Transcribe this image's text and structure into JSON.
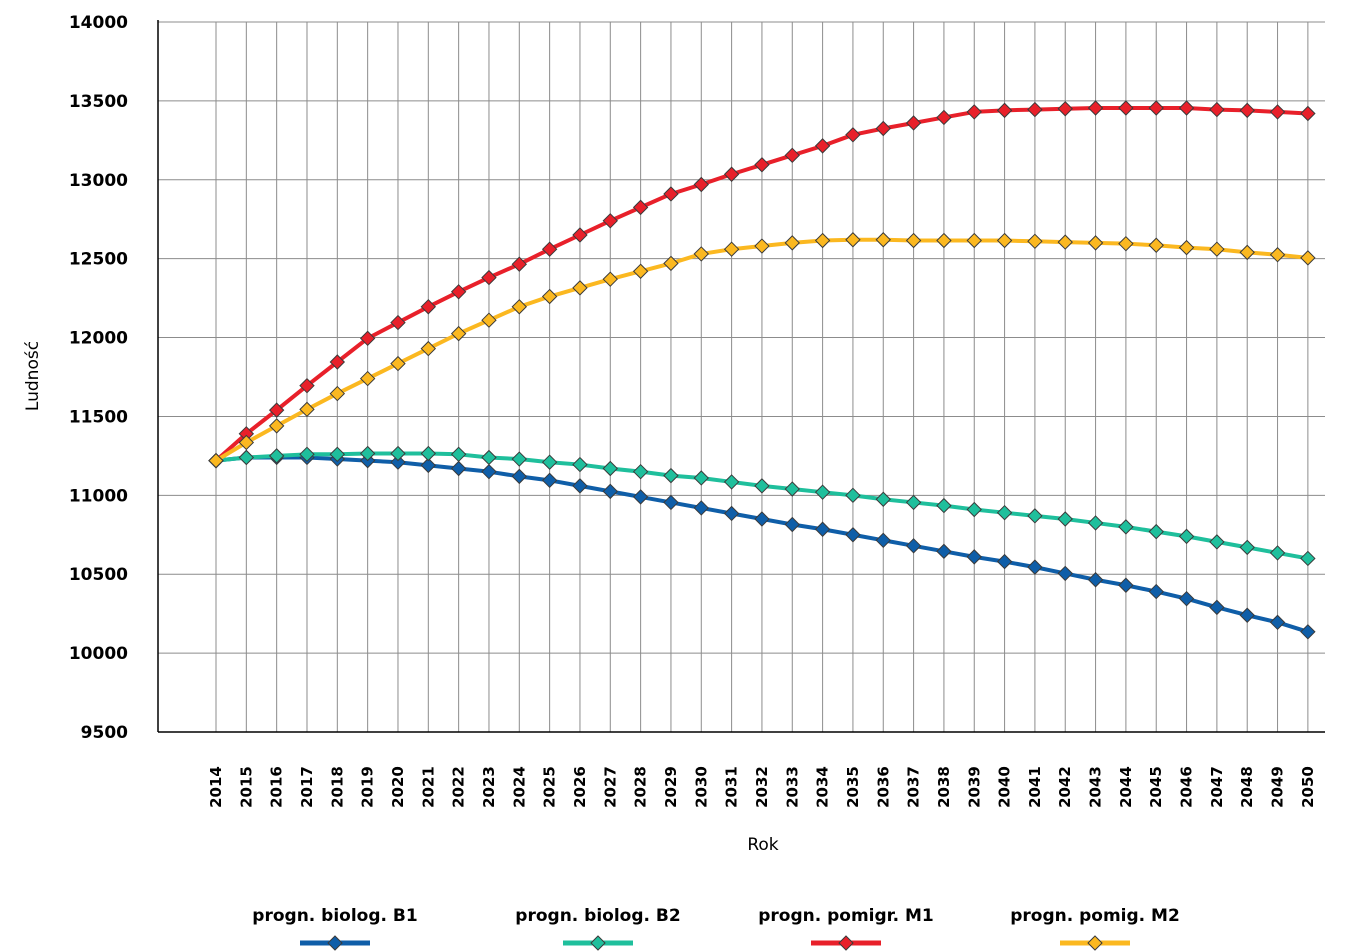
{
  "chart_data": {
    "type": "line",
    "xlabel": "Rok",
    "ylabel": "Ludność",
    "ylim": [
      9500,
      14000
    ],
    "yticks": [
      9500,
      10000,
      10500,
      11000,
      11500,
      12000,
      12500,
      13000,
      13500,
      14000
    ],
    "grid": true,
    "legend_position": "bottom",
    "x": [
      2014,
      2015,
      2016,
      2017,
      2018,
      2019,
      2020,
      2021,
      2022,
      2023,
      2024,
      2025,
      2026,
      2027,
      2028,
      2029,
      2030,
      2031,
      2032,
      2033,
      2034,
      2035,
      2036,
      2037,
      2038,
      2039,
      2040,
      2041,
      2042,
      2043,
      2044,
      2045,
      2046,
      2047,
      2048,
      2049,
      2050
    ],
    "series": [
      {
        "name": "progn. biolog. B1",
        "color": "#0f5ea8",
        "values": [
          11220,
          11240,
          11240,
          11240,
          11230,
          11220,
          11210,
          11190,
          11170,
          11150,
          11120,
          11095,
          11060,
          11025,
          10990,
          10955,
          10920,
          10885,
          10850,
          10815,
          10785,
          10750,
          10715,
          10680,
          10645,
          10610,
          10580,
          10545,
          10505,
          10465,
          10430,
          10390,
          10345,
          10290,
          10240,
          10195,
          10135
        ]
      },
      {
        "name": "progn. biolog. B2",
        "color": "#1fbf9c",
        "values": [
          11220,
          11240,
          11250,
          11260,
          11260,
          11265,
          11265,
          11265,
          11260,
          11240,
          11230,
          11210,
          11195,
          11170,
          11150,
          11125,
          11110,
          11085,
          11060,
          11040,
          11020,
          11000,
          10975,
          10955,
          10935,
          10910,
          10890,
          10870,
          10850,
          10825,
          10800,
          10770,
          10740,
          10705,
          10670,
          10635,
          10600
        ]
      },
      {
        "name": "progn. pomigr. M1",
        "color": "#e8202a",
        "values": [
          11220,
          11390,
          11540,
          11695,
          11845,
          11995,
          12095,
          12195,
          12290,
          12380,
          12465,
          12560,
          12650,
          12740,
          12825,
          12910,
          12970,
          13035,
          13095,
          13155,
          13215,
          13285,
          13325,
          13360,
          13395,
          13430,
          13440,
          13445,
          13450,
          13455,
          13455,
          13455,
          13455,
          13445,
          13440,
          13430,
          13420
        ]
      },
      {
        "name": "progn. pomig. M2",
        "color": "#fbb820",
        "values": [
          11220,
          11335,
          11440,
          11545,
          11645,
          11740,
          11835,
          11930,
          12025,
          12110,
          12195,
          12260,
          12315,
          12370,
          12420,
          12470,
          12530,
          12560,
          12580,
          12600,
          12615,
          12620,
          12620,
          12615,
          12615,
          12615,
          12615,
          12610,
          12605,
          12600,
          12595,
          12585,
          12570,
          12560,
          12540,
          12525,
          12505
        ]
      }
    ]
  }
}
